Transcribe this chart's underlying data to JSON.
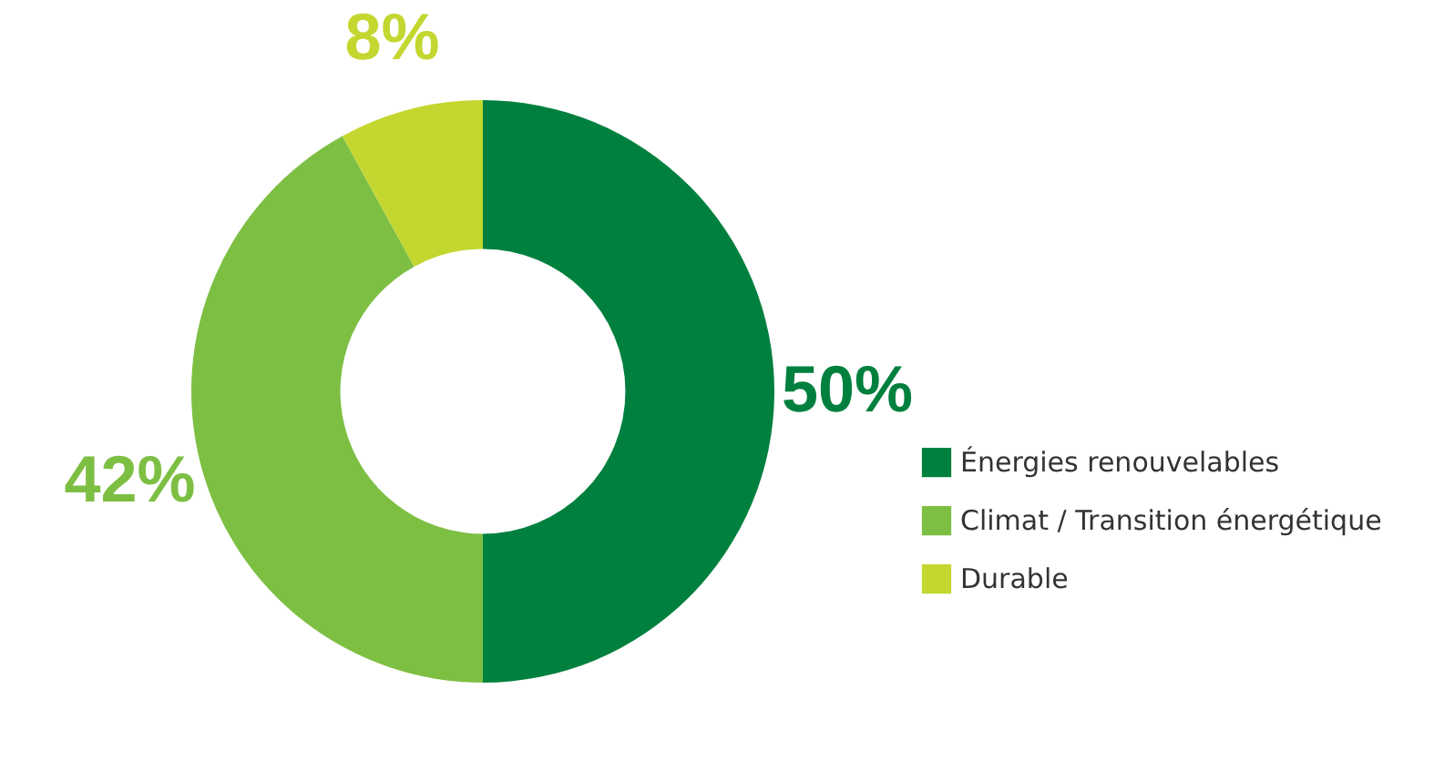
{
  "chart_data": {
    "type": "donut",
    "categories": [
      "Énergies renouvelables",
      "Climat / Transition énergétique",
      "Durable"
    ],
    "values": [
      50,
      42,
      8
    ],
    "colors": [
      "#00803e",
      "#7dbf43",
      "#c3d730"
    ],
    "value_labels": [
      "50%",
      "42%",
      "8%"
    ],
    "legend": "right"
  }
}
